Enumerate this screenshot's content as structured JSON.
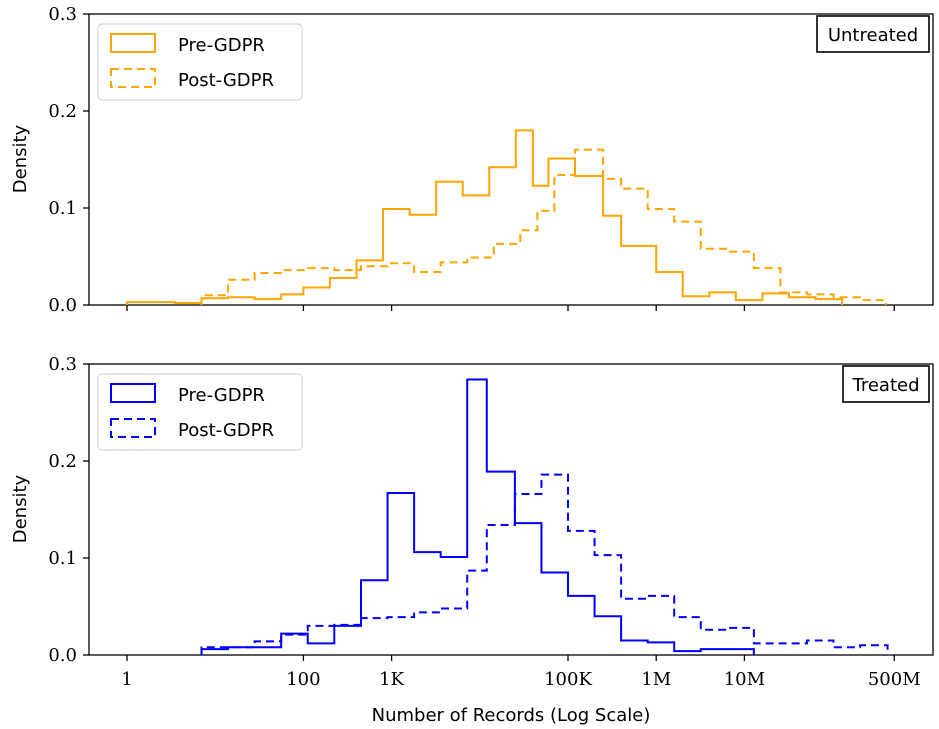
{
  "chart_data": [
    {
      "type": "step",
      "panel_label": "Untreated",
      "ylabel": "Density",
      "ylim": [
        0,
        0.3
      ],
      "yticks": [
        "0.0",
        "0.1",
        "0.2",
        "0.3"
      ],
      "xscale": "log",
      "xticks": [],
      "xlabel": "",
      "legend_position": "top-left",
      "series": [
        {
          "name": "Pre-GDPR",
          "color": "#FFA500",
          "linestyle": "solid",
          "bins": [
            {
              "x0": 1,
              "x1": 3.5,
              "y": 0.003
            },
            {
              "x0": 3.5,
              "x1": 7,
              "y": 0.002
            },
            {
              "x0": 7,
              "x1": 14,
              "y": 0.007
            },
            {
              "x0": 14,
              "x1": 28,
              "y": 0.008
            },
            {
              "x0": 28,
              "x1": 56,
              "y": 0.006
            },
            {
              "x0": 56,
              "x1": 100,
              "y": 0.011
            },
            {
              "x0": 100,
              "x1": 200,
              "y": 0.018
            },
            {
              "x0": 200,
              "x1": 400,
              "y": 0.028
            },
            {
              "x0": 400,
              "x1": 800,
              "y": 0.046
            },
            {
              "x0": 800,
              "x1": 1600,
              "y": 0.099
            },
            {
              "x0": 1600,
              "x1": 3200,
              "y": 0.093
            },
            {
              "x0": 3200,
              "x1": 6400,
              "y": 0.127
            },
            {
              "x0": 6400,
              "x1": 12800,
              "y": 0.113
            },
            {
              "x0": 12800,
              "x1": 25600,
              "y": 0.142
            },
            {
              "x0": 25600,
              "x1": 40000,
              "y": 0.18
            },
            {
              "x0": 40000,
              "x1": 60000,
              "y": 0.123
            },
            {
              "x0": 60000,
              "x1": 120000,
              "y": 0.151
            },
            {
              "x0": 120000,
              "x1": 250000,
              "y": 0.133
            },
            {
              "x0": 250000,
              "x1": 400000,
              "y": 0.092
            },
            {
              "x0": 400000,
              "x1": 1000000,
              "y": 0.061
            },
            {
              "x0": 1000000,
              "x1": 2000000,
              "y": 0.034
            },
            {
              "x0": 2000000,
              "x1": 4000000,
              "y": 0.009
            },
            {
              "x0": 4000000,
              "x1": 8000000,
              "y": 0.013
            },
            {
              "x0": 8000000,
              "x1": 16000000,
              "y": 0.005
            },
            {
              "x0": 16000000,
              "x1": 32000000,
              "y": 0.012
            },
            {
              "x0": 32000000,
              "x1": 64000000,
              "y": 0.008
            },
            {
              "x0": 64000000,
              "x1": 128000000,
              "y": 0.006
            }
          ]
        },
        {
          "name": "Post-GDPR",
          "color": "#FFA500",
          "linestyle": "dashed",
          "bins": [
            {
              "x0": 7,
              "x1": 14,
              "y": 0.01
            },
            {
              "x0": 14,
              "x1": 28,
              "y": 0.026
            },
            {
              "x0": 28,
              "x1": 56,
              "y": 0.033
            },
            {
              "x0": 56,
              "x1": 112,
              "y": 0.036
            },
            {
              "x0": 112,
              "x1": 224,
              "y": 0.038
            },
            {
              "x0": 224,
              "x1": 450,
              "y": 0.036
            },
            {
              "x0": 450,
              "x1": 900,
              "y": 0.04
            },
            {
              "x0": 900,
              "x1": 1800,
              "y": 0.043
            },
            {
              "x0": 1800,
              "x1": 3600,
              "y": 0.034
            },
            {
              "x0": 3600,
              "x1": 7200,
              "y": 0.044
            },
            {
              "x0": 7200,
              "x1": 14400,
              "y": 0.049
            },
            {
              "x0": 14400,
              "x1": 28800,
              "y": 0.063
            },
            {
              "x0": 28800,
              "x1": 45000,
              "y": 0.077
            },
            {
              "x0": 45000,
              "x1": 70000,
              "y": 0.097
            },
            {
              "x0": 70000,
              "x1": 120000,
              "y": 0.134
            },
            {
              "x0": 120000,
              "x1": 250000,
              "y": 0.16
            },
            {
              "x0": 250000,
              "x1": 400000,
              "y": 0.13
            },
            {
              "x0": 400000,
              "x1": 800000,
              "y": 0.12
            },
            {
              "x0": 800000,
              "x1": 1600000,
              "y": 0.099
            },
            {
              "x0": 1600000,
              "x1": 3200000,
              "y": 0.086
            },
            {
              "x0": 3200000,
              "x1": 6400000,
              "y": 0.058
            },
            {
              "x0": 6400000,
              "x1": 12800000,
              "y": 0.055
            },
            {
              "x0": 12800000,
              "x1": 25600000,
              "y": 0.038
            },
            {
              "x0": 25600000,
              "x1": 51200000,
              "y": 0.013
            },
            {
              "x0": 51200000,
              "x1": 102400000,
              "y": 0.011
            },
            {
              "x0": 102400000,
              "x1": 204800000,
              "y": 0.008
            },
            {
              "x0": 204800000,
              "x1": 400000000,
              "y": 0.005
            }
          ]
        }
      ]
    },
    {
      "type": "step",
      "panel_label": "Treated",
      "ylabel": "Density",
      "ylim": [
        0,
        0.3
      ],
      "yticks": [
        "0.0",
        "0.1",
        "0.2",
        "0.3"
      ],
      "xscale": "log",
      "xticks": [
        "1",
        "100",
        "1K",
        "100K",
        "1M",
        "10M",
        "500M"
      ],
      "xlabel": "Number of Records (Log Scale)",
      "legend_position": "top-left",
      "series": [
        {
          "name": "Pre-GDPR",
          "color": "#0000FF",
          "linestyle": "solid",
          "bins": [
            {
              "x0": 7,
              "x1": 14,
              "y": 0.006
            },
            {
              "x0": 14,
              "x1": 28,
              "y": 0.008
            },
            {
              "x0": 28,
              "x1": 56,
              "y": 0.008
            },
            {
              "x0": 56,
              "x1": 112,
              "y": 0.022
            },
            {
              "x0": 112,
              "x1": 224,
              "y": 0.012
            },
            {
              "x0": 224,
              "x1": 450,
              "y": 0.03
            },
            {
              "x0": 450,
              "x1": 900,
              "y": 0.077
            },
            {
              "x0": 900,
              "x1": 1800,
              "y": 0.167
            },
            {
              "x0": 1800,
              "x1": 3600,
              "y": 0.106
            },
            {
              "x0": 3600,
              "x1": 7200,
              "y": 0.101
            },
            {
              "x0": 7200,
              "x1": 12000,
              "y": 0.284
            },
            {
              "x0": 12000,
              "x1": 25000,
              "y": 0.189
            },
            {
              "x0": 25000,
              "x1": 50000,
              "y": 0.136
            },
            {
              "x0": 50000,
              "x1": 100000,
              "y": 0.085
            },
            {
              "x0": 100000,
              "x1": 200000,
              "y": 0.061
            },
            {
              "x0": 200000,
              "x1": 400000,
              "y": 0.04
            },
            {
              "x0": 400000,
              "x1": 800000,
              "y": 0.015
            },
            {
              "x0": 800000,
              "x1": 1600000,
              "y": 0.013
            },
            {
              "x0": 1600000,
              "x1": 3200000,
              "y": 0.004
            },
            {
              "x0": 3200000,
              "x1": 6400000,
              "y": 0.006
            },
            {
              "x0": 6400000,
              "x1": 12800000,
              "y": 0.006
            }
          ]
        },
        {
          "name": "Post-GDPR",
          "color": "#0000FF",
          "linestyle": "dashed",
          "bins": [
            {
              "x0": 7,
              "x1": 14,
              "y": 0.008
            },
            {
              "x0": 14,
              "x1": 28,
              "y": 0.008
            },
            {
              "x0": 28,
              "x1": 56,
              "y": 0.014
            },
            {
              "x0": 56,
              "x1": 112,
              "y": 0.021
            },
            {
              "x0": 112,
              "x1": 224,
              "y": 0.03
            },
            {
              "x0": 224,
              "x1": 450,
              "y": 0.031
            },
            {
              "x0": 450,
              "x1": 900,
              "y": 0.038
            },
            {
              "x0": 900,
              "x1": 1800,
              "y": 0.039
            },
            {
              "x0": 1800,
              "x1": 3600,
              "y": 0.044
            },
            {
              "x0": 3600,
              "x1": 7200,
              "y": 0.048
            },
            {
              "x0": 7200,
              "x1": 12000,
              "y": 0.087
            },
            {
              "x0": 12000,
              "x1": 25000,
              "y": 0.134
            },
            {
              "x0": 25000,
              "x1": 50000,
              "y": 0.166
            },
            {
              "x0": 50000,
              "x1": 100000,
              "y": 0.186
            },
            {
              "x0": 100000,
              "x1": 200000,
              "y": 0.128
            },
            {
              "x0": 200000,
              "x1": 400000,
              "y": 0.103
            },
            {
              "x0": 400000,
              "x1": 800000,
              "y": 0.058
            },
            {
              "x0": 800000,
              "x1": 1600000,
              "y": 0.061
            },
            {
              "x0": 1600000,
              "x1": 3200000,
              "y": 0.039
            },
            {
              "x0": 3200000,
              "x1": 6400000,
              "y": 0.026
            },
            {
              "x0": 6400000,
              "x1": 12800000,
              "y": 0.028
            },
            {
              "x0": 12800000,
              "x1": 25600000,
              "y": 0.012
            },
            {
              "x0": 25600000,
              "x1": 51200000,
              "y": 0.012
            },
            {
              "x0": 51200000,
              "x1": 102400000,
              "y": 0.015
            },
            {
              "x0": 102400000,
              "x1": 204800000,
              "y": 0.008
            },
            {
              "x0": 204800000,
              "x1": 420000000,
              "y": 0.01
            }
          ]
        }
      ]
    }
  ]
}
